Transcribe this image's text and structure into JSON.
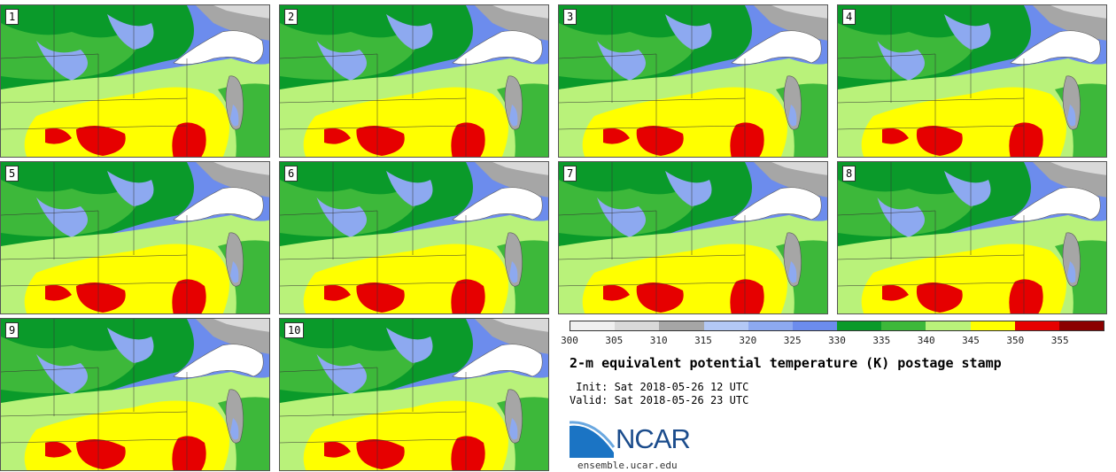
{
  "stamps": [
    {
      "label": "1"
    },
    {
      "label": "2"
    },
    {
      "label": "3"
    },
    {
      "label": "4"
    },
    {
      "label": "5"
    },
    {
      "label": "6"
    },
    {
      "label": "7"
    },
    {
      "label": "8"
    },
    {
      "label": "9"
    },
    {
      "label": "10"
    }
  ],
  "colorbar": {
    "ticks": [
      "300",
      "305",
      "310",
      "315",
      "320",
      "325",
      "330",
      "335",
      "340",
      "345",
      "350",
      "355"
    ],
    "colors": [
      "#f0f0f0",
      "#d9d9d9",
      "#a6a6a6",
      "#b3c8f5",
      "#8da9f0",
      "#6c8ced",
      "#0a9a2a",
      "#3db83a",
      "#b9f27a",
      "#ffff00",
      "#e60000",
      "#8b0000"
    ]
  },
  "title": "2-m equivalent potential temperature (K) postage stamp",
  "init": " Init: Sat 2018-05-26 12 UTC",
  "valid": "Valid: Sat 2018-05-26 23 UTC",
  "logo": {
    "text": "NCAR",
    "url": "ensemble.ucar.edu"
  }
}
